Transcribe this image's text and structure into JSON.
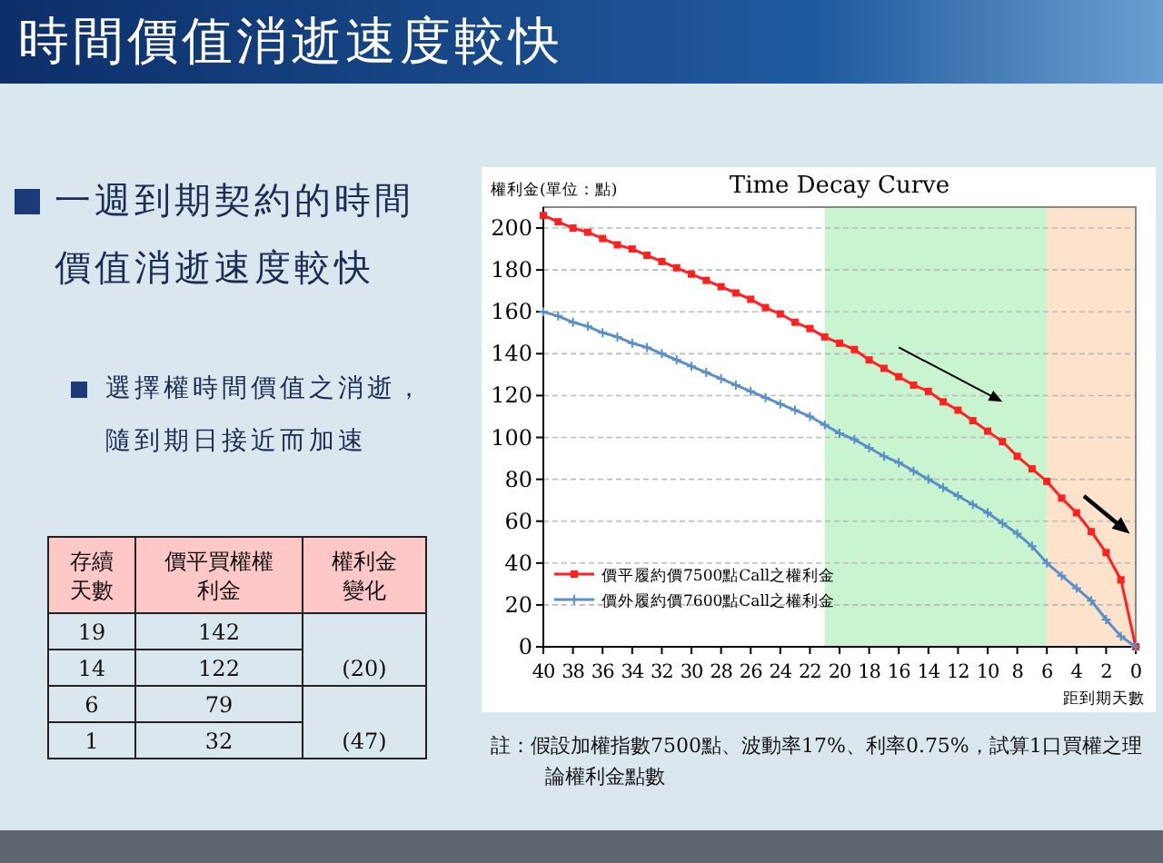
{
  "chart_data": [
    {
      "type": "other",
      "title": "時間價值消逝速度較快",
      "annotations": [
        "一週到期契約的時間價值消逝速度較快",
        "選擇權時間價值之消逝，隨到期日接近而加速",
        "存續天數",
        "價平買權權利金",
        "權利金變化",
        "19",
        "142",
        "(20)",
        "14",
        "122",
        "6",
        "79",
        "(47)",
        "1",
        "32"
      ]
    },
    {
      "type": "line",
      "title": "Time Decay Curve",
      "xlabel": "距到期天數",
      "ylabel": "權利金(單位：點)",
      "xlim": [
        40,
        0
      ],
      "xticks": [
        40,
        38,
        36,
        34,
        32,
        30,
        28,
        26,
        24,
        22,
        20,
        18,
        16,
        14,
        12,
        10,
        8,
        6,
        4,
        2,
        0
      ],
      "ylim": [
        0,
        210
      ],
      "yticks": [
        0,
        20,
        40,
        60,
        80,
        100,
        120,
        140,
        160,
        180,
        200
      ],
      "grid": "y",
      "legend": "bottom left",
      "x": [
        40,
        39,
        38,
        37,
        36,
        35,
        34,
        33,
        32,
        31,
        30,
        29,
        28,
        27,
        26,
        25,
        24,
        23,
        22,
        21,
        20,
        19,
        18,
        17,
        16,
        15,
        14,
        13,
        12,
        11,
        10,
        9,
        8,
        7,
        6,
        5,
        4,
        3,
        2,
        1,
        0
      ],
      "series": [
        {
          "name": "價平履約價7500點Call之權利金",
          "color": "#ff2020",
          "marker": "square",
          "values": [
            206,
            203,
            200,
            198,
            195,
            192,
            190,
            187,
            184,
            181,
            178,
            175,
            172,
            169,
            166,
            162,
            159,
            155,
            152,
            148,
            145,
            142,
            137,
            133,
            129,
            125,
            122,
            117,
            113,
            108,
            103,
            98,
            91,
            85,
            79,
            71,
            64,
            55,
            45,
            32,
            0
          ]
        },
        {
          "name": "價外履約價7600點Call之權利金",
          "color": "#5b8fc7",
          "marker": "cross",
          "values": [
            160,
            158,
            155,
            153,
            150,
            148,
            145,
            143,
            140,
            137,
            134,
            131,
            128,
            125,
            122,
            119,
            116,
            113,
            110,
            106,
            102,
            99,
            95,
            91,
            88,
            84,
            80,
            76,
            72,
            68,
            64,
            59,
            54,
            48,
            40,
            34,
            28,
            22,
            13,
            5,
            0
          ]
        }
      ],
      "bands": [
        {
          "axis": "x",
          "from": 21,
          "to": 6,
          "color": "#c8f5d0"
        },
        {
          "axis": "x",
          "from": 6,
          "to": 0,
          "color": "#fde3cc"
        }
      ],
      "annotations": [
        "註：假設加權指數7500點、波動率17%、利率0.75%，試算1口買權之理論權利金點數"
      ]
    }
  ]
}
